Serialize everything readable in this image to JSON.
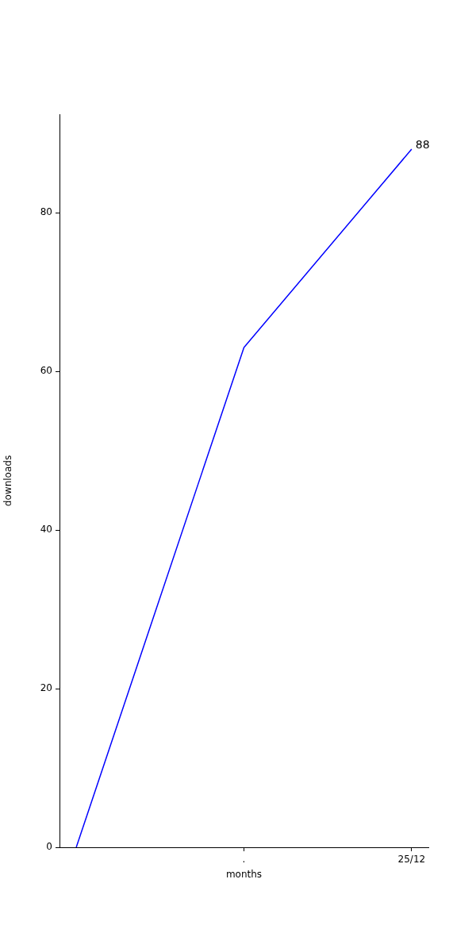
{
  "chart_data": {
    "type": "line",
    "xlabel": "months",
    "ylabel": "downloads",
    "categories": [
      null,
      ".",
      "25/12"
    ],
    "series": [
      {
        "color": "#0000ff",
        "values": [
          0,
          63,
          88
        ],
        "value_labels": [
          null,
          null,
          "88"
        ]
      }
    ],
    "ylim": [
      0,
      92.4
    ],
    "yticks": [
      0,
      20,
      40,
      60,
      80
    ],
    "grid": false,
    "legend": false,
    "marker": "none",
    "line_style": "solid"
  }
}
